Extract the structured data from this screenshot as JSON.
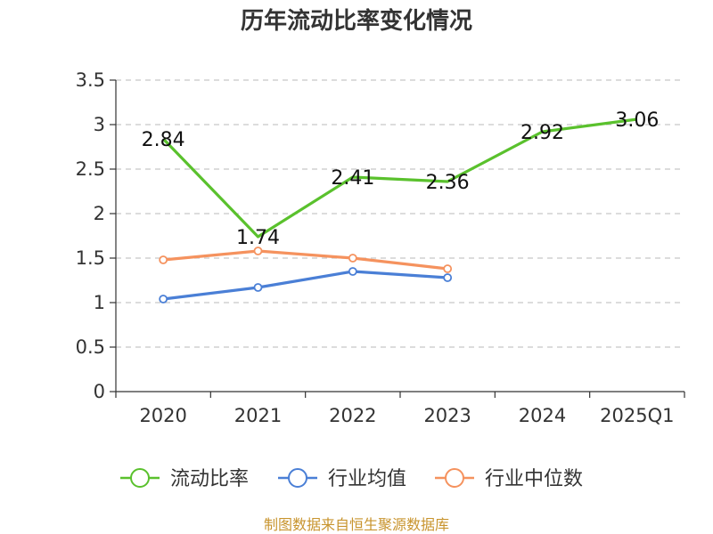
{
  "chart_data": {
    "type": "line",
    "title": "历年流动比率变化情况",
    "categories": [
      "2020",
      "2021",
      "2022",
      "2023",
      "2024",
      "2025Q1"
    ],
    "ylim": [
      0,
      3.5
    ],
    "yticks": [
      "0",
      "0.5",
      "1",
      "1.5",
      "2",
      "2.5",
      "3",
      "3.5"
    ],
    "grid": true,
    "legend_position": "bottom",
    "series": [
      {
        "name": "流动比率",
        "color": "#5ac12d",
        "values": [
          2.84,
          1.74,
          2.41,
          2.36,
          2.92,
          3.06
        ],
        "labels": [
          "2.84",
          "1.74",
          "2.41",
          "2.36",
          "2.92",
          "3.06"
        ],
        "markers": false
      },
      {
        "name": "行业均值",
        "color": "#4a7fd6",
        "values": [
          1.04,
          1.17,
          1.35,
          1.28,
          null,
          null
        ],
        "markers": true
      },
      {
        "name": "行业中位数",
        "color": "#f5925e",
        "values": [
          1.48,
          1.58,
          1.5,
          1.38,
          null,
          null
        ],
        "markers": true
      }
    ]
  },
  "source": "制图数据来自恒生聚源数据库"
}
